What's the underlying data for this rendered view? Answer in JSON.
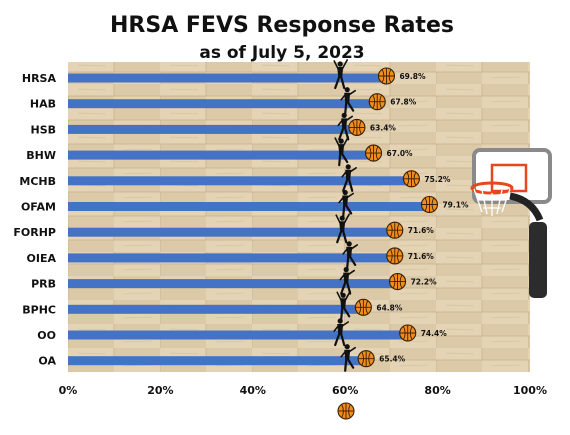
{
  "chart_data": {
    "type": "bar",
    "orientation": "horizontal",
    "title": "HRSA FEVS Response Rates",
    "subtitle": "as of July 5, 2023",
    "categories": [
      "HRSA",
      "HAB",
      "HSB",
      "BHW",
      "MCHB",
      "OFAM",
      "FORHP",
      "OIEA",
      "PRB",
      "BPHC",
      "OO",
      "OA"
    ],
    "values": [
      69.8,
      67.8,
      63.4,
      67.0,
      75.2,
      79.1,
      71.6,
      71.6,
      72.2,
      64.8,
      74.4,
      65.4
    ],
    "data_labels": [
      "69.8%",
      "67.8%",
      "63.4%",
      "67.0%",
      "75.2%",
      "79.1%",
      "71.6%",
      "71.6%",
      "72.2%",
      "64.8%",
      "74.4%",
      "65.4%"
    ],
    "xlim": [
      0,
      100
    ],
    "x_ticks": [
      "0%",
      "20%",
      "40%",
      "60%",
      "80%",
      "100%"
    ],
    "x_tick_values": [
      0,
      20,
      40,
      60,
      80,
      100
    ],
    "grid": false,
    "legend": "bottom-center",
    "legend_marker": "basketball-icon",
    "background": "basketball-court-wood-floor",
    "colors": {
      "bar": "#4472C4",
      "ball": "#F28C1C",
      "ball_line": "#3a2000",
      "silhouette": "#111111",
      "rim": "#E8461E"
    }
  }
}
